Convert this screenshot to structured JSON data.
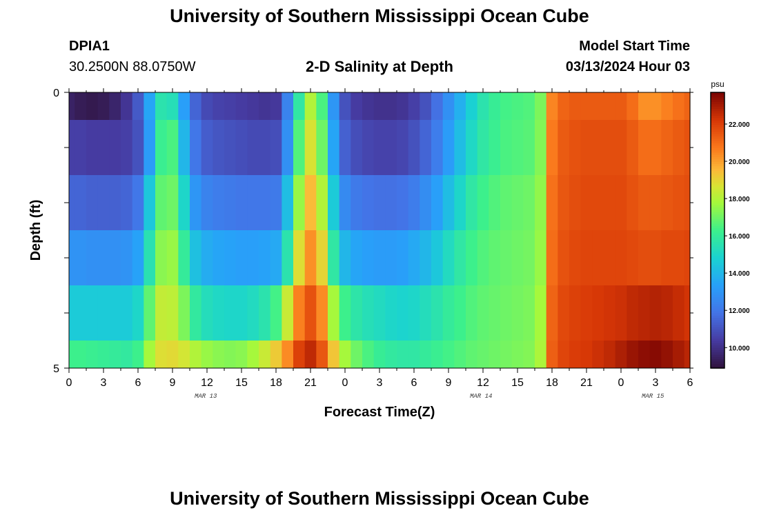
{
  "header": {
    "title": "University of Southern Mississippi Ocean Cube",
    "station_id": "DPIA1",
    "station_coords": "30.2500N  88.0750W",
    "plot_title": "2-D Salinity at Depth",
    "model_start_label": "Model Start Time",
    "model_start_value": "03/13/2024 Hour 03",
    "footer_title": "University of Southern Mississippi Ocean Cube"
  },
  "chart_data": {
    "type": "heatmap",
    "title": "2-D Salinity at Depth",
    "xlabel": "Forecast Time(Z)",
    "ylabel": "Depth (ft)",
    "ylim": [
      0,
      5
    ],
    "y_ticks": [
      "0",
      "5"
    ],
    "x_ticks": [
      "0",
      "3",
      "6",
      "9",
      "12",
      "15",
      "18",
      "21",
      "0",
      "3",
      "6",
      "9",
      "12",
      "15",
      "18",
      "21",
      "0",
      "3",
      "6"
    ],
    "date_labels": [
      "MAR 13",
      "MAR 14",
      "MAR 15"
    ],
    "colorbar": {
      "unit": "psu",
      "min": 8.9,
      "max": 23.7,
      "ticks": [
        "10.000",
        "12.000",
        "14.000",
        "16.000",
        "18.000",
        "20.000",
        "22.000"
      ],
      "tick_values": [
        10,
        12,
        14,
        16,
        18,
        20,
        22
      ]
    },
    "x_hours": [
      0,
      1,
      2,
      3,
      4,
      5,
      6,
      7,
      8,
      9,
      10,
      11,
      12,
      13,
      14,
      15,
      16,
      17,
      18,
      19,
      20,
      21,
      22,
      23,
      24,
      25,
      26,
      27,
      28,
      29,
      30,
      31,
      32,
      33,
      34,
      35,
      36,
      37,
      38,
      39,
      40,
      41,
      42,
      43,
      44,
      45,
      46,
      47,
      48,
      49,
      50,
      51,
      52,
      53,
      54
    ],
    "layers": [
      {
        "depth_top": 0,
        "depth_bottom": 0.5,
        "values": [
          9.5,
          9.3,
          9.2,
          9.3,
          9.6,
          10.2,
          11.2,
          13.5,
          15.6,
          15.4,
          13.3,
          11.5,
          10.8,
          10.6,
          10.5,
          10.4,
          10.3,
          10.2,
          10.3,
          12.4,
          15.8,
          18.0,
          16.5,
          13.0,
          11.0,
          10.4,
          10.2,
          10.1,
          10.1,
          10.2,
          10.5,
          11.0,
          11.8,
          12.8,
          13.8,
          14.8,
          15.6,
          16.1,
          16.4,
          16.5,
          16.6,
          17.2,
          20.5,
          21.2,
          21.4,
          21.4,
          21.4,
          21.4,
          21.4,
          21.0,
          20.3,
          20.3,
          20.6,
          20.9,
          21.2
        ]
      },
      {
        "depth_top": 0.5,
        "depth_bottom": 1.5,
        "values": [
          10.5,
          10.5,
          10.4,
          10.4,
          10.4,
          10.5,
          11.0,
          13.2,
          16.2,
          16.5,
          14.0,
          12.0,
          11.3,
          11.1,
          11.0,
          10.9,
          10.8,
          10.8,
          10.9,
          12.8,
          16.6,
          18.7,
          17.0,
          13.5,
          11.4,
          10.9,
          10.7,
          10.6,
          10.6,
          10.7,
          11.0,
          11.5,
          12.2,
          13.2,
          14.2,
          15.1,
          15.8,
          16.2,
          16.5,
          16.6,
          16.7,
          17.3,
          20.7,
          21.4,
          21.6,
          21.7,
          21.7,
          21.7,
          21.7,
          21.4,
          21.0,
          21.0,
          21.2,
          21.4,
          21.6
        ]
      },
      {
        "depth_top": 1.5,
        "depth_bottom": 2.5,
        "values": [
          11.5,
          11.5,
          11.4,
          11.4,
          11.4,
          11.5,
          12.0,
          14.5,
          16.8,
          17.0,
          15.0,
          13.0,
          12.4,
          12.2,
          12.1,
          12.0,
          12.0,
          12.0,
          12.1,
          14.2,
          17.6,
          19.5,
          18.0,
          14.6,
          12.6,
          12.1,
          11.9,
          11.8,
          11.8,
          11.9,
          12.2,
          12.7,
          13.3,
          14.2,
          15.0,
          15.8,
          16.3,
          16.6,
          16.8,
          16.9,
          17.0,
          17.5,
          20.9,
          21.5,
          21.7,
          21.8,
          21.8,
          21.8,
          21.8,
          21.6,
          21.4,
          21.4,
          21.5,
          21.6,
          21.7
        ]
      },
      {
        "depth_top": 2.5,
        "depth_bottom": 3.5,
        "values": [
          12.9,
          12.9,
          12.8,
          12.8,
          12.8,
          12.9,
          13.4,
          15.5,
          17.4,
          17.6,
          16.0,
          14.3,
          13.7,
          13.5,
          13.4,
          13.3,
          13.3,
          13.4,
          13.6,
          15.6,
          18.8,
          20.3,
          19.0,
          15.8,
          14.0,
          13.5,
          13.3,
          13.2,
          13.2,
          13.3,
          13.6,
          14.0,
          14.5,
          15.2,
          15.8,
          16.3,
          16.6,
          16.8,
          16.9,
          17.0,
          17.1,
          17.6,
          21.0,
          21.6,
          21.8,
          21.9,
          21.9,
          21.9,
          21.9,
          21.8,
          21.7,
          21.7,
          21.8,
          21.8,
          21.9
        ]
      },
      {
        "depth_top": 3.5,
        "depth_bottom": 4.5,
        "values": [
          14.6,
          14.6,
          14.6,
          14.6,
          14.6,
          14.6,
          15.0,
          16.8,
          18.3,
          18.2,
          17.2,
          15.9,
          15.3,
          15.1,
          15.0,
          15.0,
          15.2,
          15.6,
          16.4,
          18.4,
          20.6,
          21.6,
          20.4,
          17.8,
          16.3,
          15.7,
          15.4,
          15.2,
          15.0,
          14.9,
          15.0,
          15.3,
          15.6,
          16.0,
          16.3,
          16.6,
          16.8,
          16.9,
          17.0,
          17.1,
          17.2,
          17.8,
          21.2,
          21.8,
          22.0,
          22.1,
          22.2,
          22.3,
          22.4,
          22.6,
          22.7,
          22.8,
          22.7,
          22.5,
          22.3
        ]
      },
      {
        "depth_top": 4.5,
        "depth_bottom": 5,
        "values": [
          16.3,
          16.3,
          16.2,
          16.1,
          16.0,
          15.9,
          16.3,
          17.8,
          18.8,
          18.9,
          18.6,
          18.0,
          17.6,
          17.4,
          17.3,
          17.4,
          17.8,
          18.4,
          19.2,
          20.4,
          22.0,
          22.6,
          21.5,
          19.3,
          17.8,
          17.0,
          16.5,
          16.1,
          15.9,
          15.8,
          15.8,
          16.0,
          16.2,
          16.4,
          16.6,
          16.8,
          16.9,
          17.0,
          17.1,
          17.2,
          17.3,
          17.9,
          21.3,
          21.9,
          22.1,
          22.2,
          22.4,
          22.6,
          22.9,
          23.2,
          23.4,
          23.5,
          23.3,
          23.0,
          22.7
        ]
      }
    ]
  }
}
